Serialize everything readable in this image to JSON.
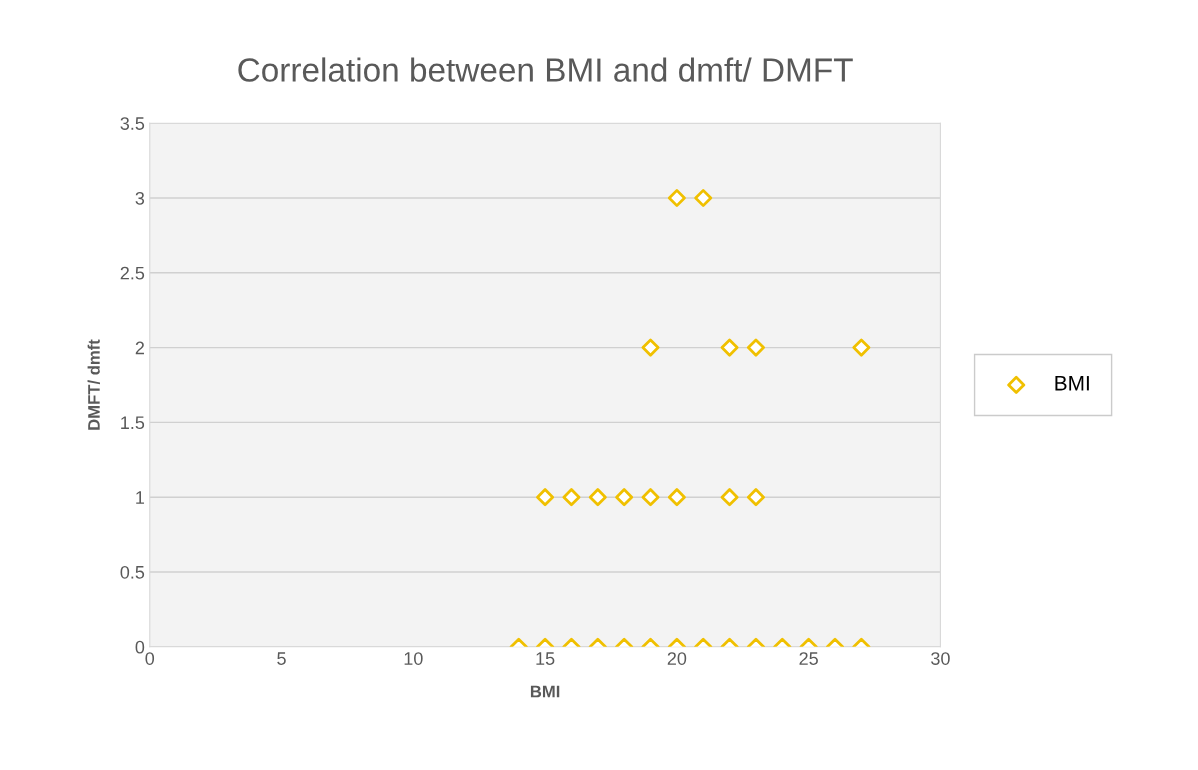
{
  "chart_data": {
    "type": "scatter",
    "title": "Correlation between BMI and dmft/ DMFT",
    "xlabel": "BMI",
    "ylabel": "DMFT/ dmft",
    "series": [
      {
        "name": "BMI",
        "color": "#f0c000",
        "x": [
          14,
          15,
          16,
          17,
          18,
          19,
          20,
          21,
          22,
          23,
          24,
          25,
          26,
          27,
          15,
          16,
          17,
          18,
          19,
          20,
          22,
          23,
          19,
          22,
          23,
          27,
          20,
          21
        ],
        "values": [
          0,
          0,
          0,
          0,
          0,
          0,
          0,
          0,
          0,
          0,
          0,
          0,
          0,
          0,
          1,
          1,
          1,
          1,
          1,
          1,
          1,
          1,
          2,
          2,
          2,
          2,
          3,
          3
        ]
      }
    ],
    "xlim": [
      0,
      30
    ],
    "xticks": [
      0,
      5,
      10,
      15,
      20,
      25,
      30
    ],
    "ylim": [
      0,
      3.5
    ],
    "yticks": [
      0,
      0.5,
      1,
      1.5,
      2,
      2.5,
      3,
      3.5
    ],
    "grid": "y",
    "legend": "right",
    "marker": "diamond"
  }
}
